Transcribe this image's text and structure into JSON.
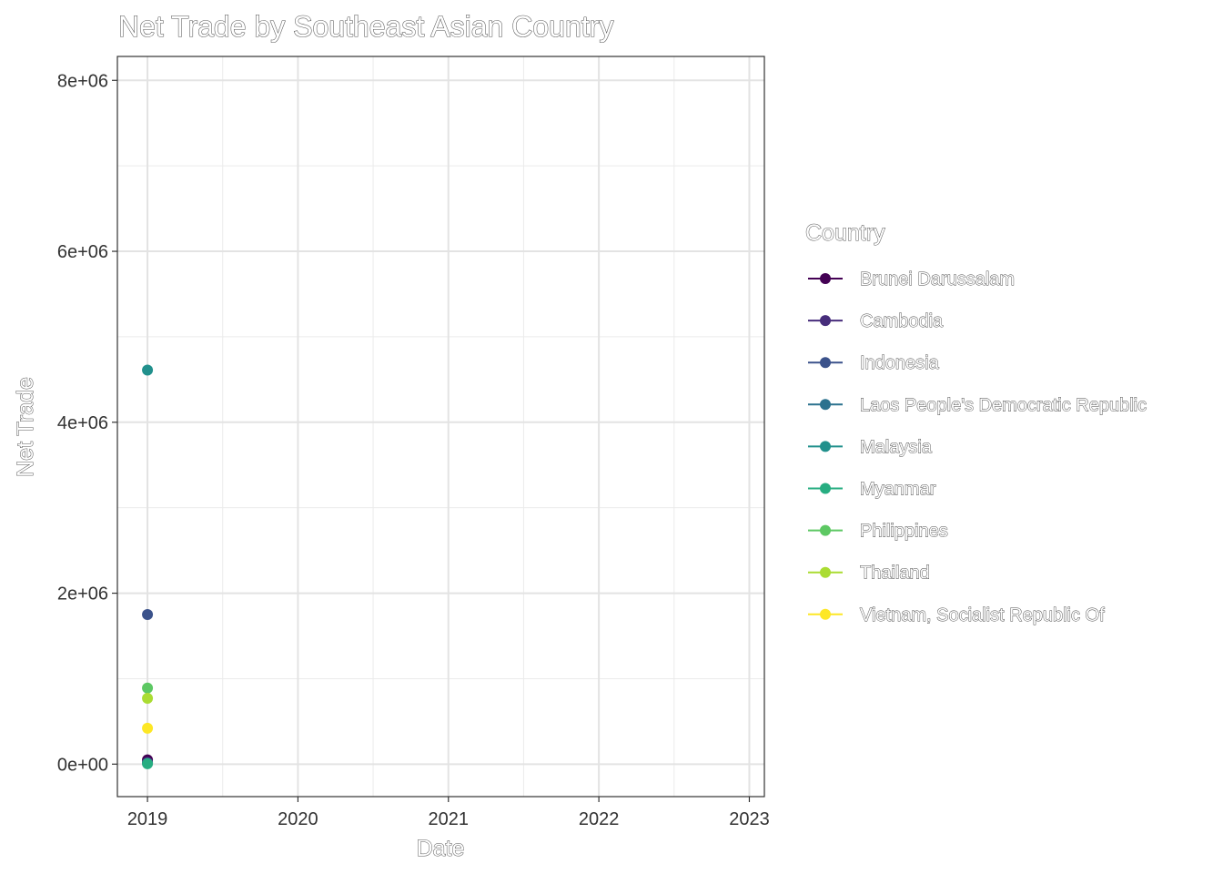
{
  "chart_data": {
    "type": "scatter",
    "title": "Net Trade by Southeast Asian Country",
    "xlabel": "Date",
    "ylabel": "Net Trade",
    "xlim": [
      2018.8,
      2023.1
    ],
    "ylim": [
      -380000,
      8280000
    ],
    "x_ticks": [
      2019,
      2020,
      2021,
      2022,
      2023
    ],
    "x_tick_labels": [
      "2019",
      "2020",
      "2021",
      "2022",
      "2023"
    ],
    "y_ticks": [
      0,
      2000000,
      4000000,
      6000000,
      8000000
    ],
    "y_tick_labels": [
      "0e+00",
      "2e+06",
      "4e+06",
      "6e+06",
      "8e+06"
    ],
    "grid": true,
    "legend": {
      "title": "Country",
      "placement": "right"
    },
    "series": [
      {
        "name": "Brunei Darussalam",
        "color": "#440154",
        "x": [
          2019
        ],
        "y": [
          50000
        ]
      },
      {
        "name": "Cambodia",
        "color": "#472D7B",
        "x": [
          2019
        ],
        "y": [
          20000
        ]
      },
      {
        "name": "Indonesia",
        "color": "#3B528B",
        "x": [
          2019
        ],
        "y": [
          1750000
        ]
      },
      {
        "name": "Laos People's Democratic Republic",
        "color": "#2C728E",
        "x": [
          2019
        ],
        "y": [
          10000
        ]
      },
      {
        "name": "Malaysia",
        "color": "#21908C",
        "x": [
          2019
        ],
        "y": [
          4610000
        ]
      },
      {
        "name": "Myanmar",
        "color": "#27AD81",
        "x": [
          2019
        ],
        "y": [
          5000
        ]
      },
      {
        "name": "Philippines",
        "color": "#5DC863",
        "x": [
          2019
        ],
        "y": [
          890000
        ]
      },
      {
        "name": "Thailand",
        "color": "#AADC32",
        "x": [
          2019
        ],
        "y": [
          770000
        ]
      },
      {
        "name": "Vietnam, Socialist Republic Of",
        "color": "#FDE725",
        "x": [
          2019
        ],
        "y": [
          420000
        ]
      }
    ]
  }
}
